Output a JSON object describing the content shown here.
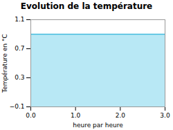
{
  "chart_data": {
    "type": "area",
    "title": "Evolution de la température",
    "xlabel": "heure par heure",
    "ylabel": "Température en °C",
    "x": [
      0,
      3
    ],
    "values": [
      0.9,
      0.9
    ],
    "colors": [
      "#b8e8f5",
      "#44bbdd"
    ],
    "xlim": [
      0,
      3
    ],
    "xticks": [
      0,
      1,
      2,
      3
    ],
    "ylim": [
      -0.1,
      1.1
    ],
    "yticks": [
      -0.1,
      0.3,
      0.7,
      1.1
    ],
    "grid": true
  }
}
